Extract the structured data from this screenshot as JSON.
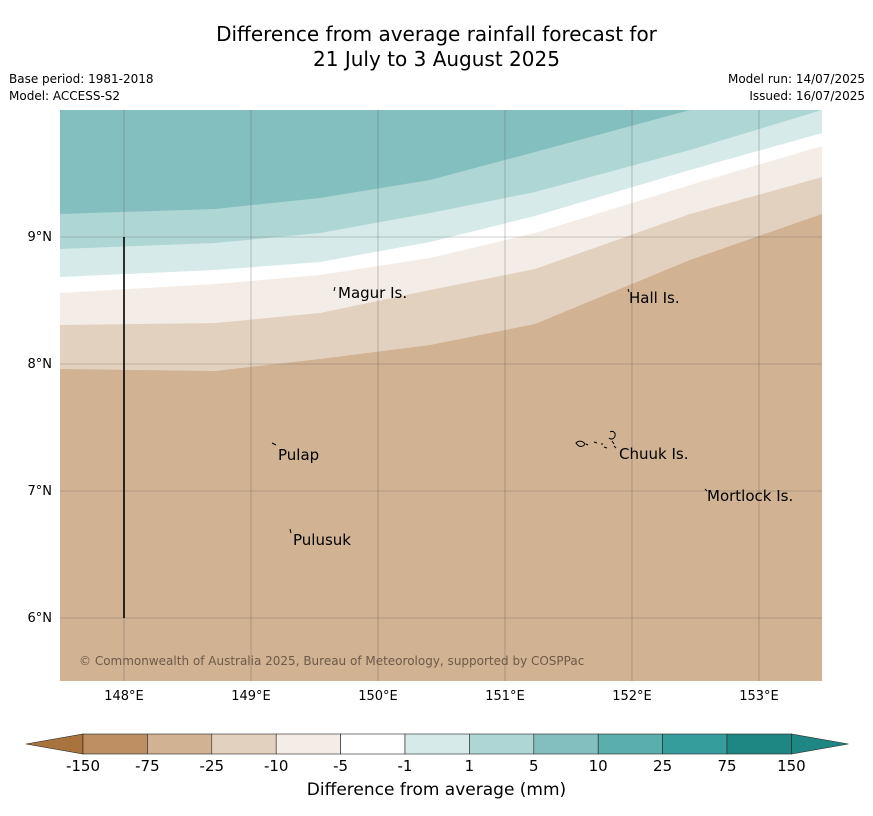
{
  "header": {
    "title_line1": "Difference from average rainfall forecast for",
    "title_line2": "21 July to 3 August 2025",
    "base_period": "Base period: 1981-2018",
    "model": "Model: ACCESS-S2",
    "model_run": "Model run: 14/07/2025",
    "issued": "Issued: 16/07/2025"
  },
  "map": {
    "lon_ticks": [
      "148°E",
      "149°E",
      "150°E",
      "151°E",
      "152°E",
      "153°E"
    ],
    "lat_ticks": [
      "9°N",
      "8°N",
      "7°N",
      "6°N"
    ],
    "places": [
      "Magur Is.",
      "Hall Is.",
      "Pulap",
      "Chuuk Is.",
      "Mortlock Is.",
      "Pulusuk"
    ],
    "copyright": "© Commonwealth of Australia 2025, Bureau of Meteorology, supported by COSPPac"
  },
  "colorbar": {
    "ticks": [
      "-150",
      "-75",
      "-25",
      "-10",
      "-5",
      "-1",
      "1",
      "5",
      "10",
      "25",
      "75",
      "150"
    ],
    "colors": [
      "#a9733d",
      "#bd8f63",
      "#d1b293",
      "#e3d1bf",
      "#f4ede7",
      "#ffffff",
      "#d6eae9",
      "#aed6d5",
      "#84bfbf",
      "#5aaeac",
      "#359d9b",
      "#1e8784"
    ],
    "label": "Difference from average (mm)"
  }
}
